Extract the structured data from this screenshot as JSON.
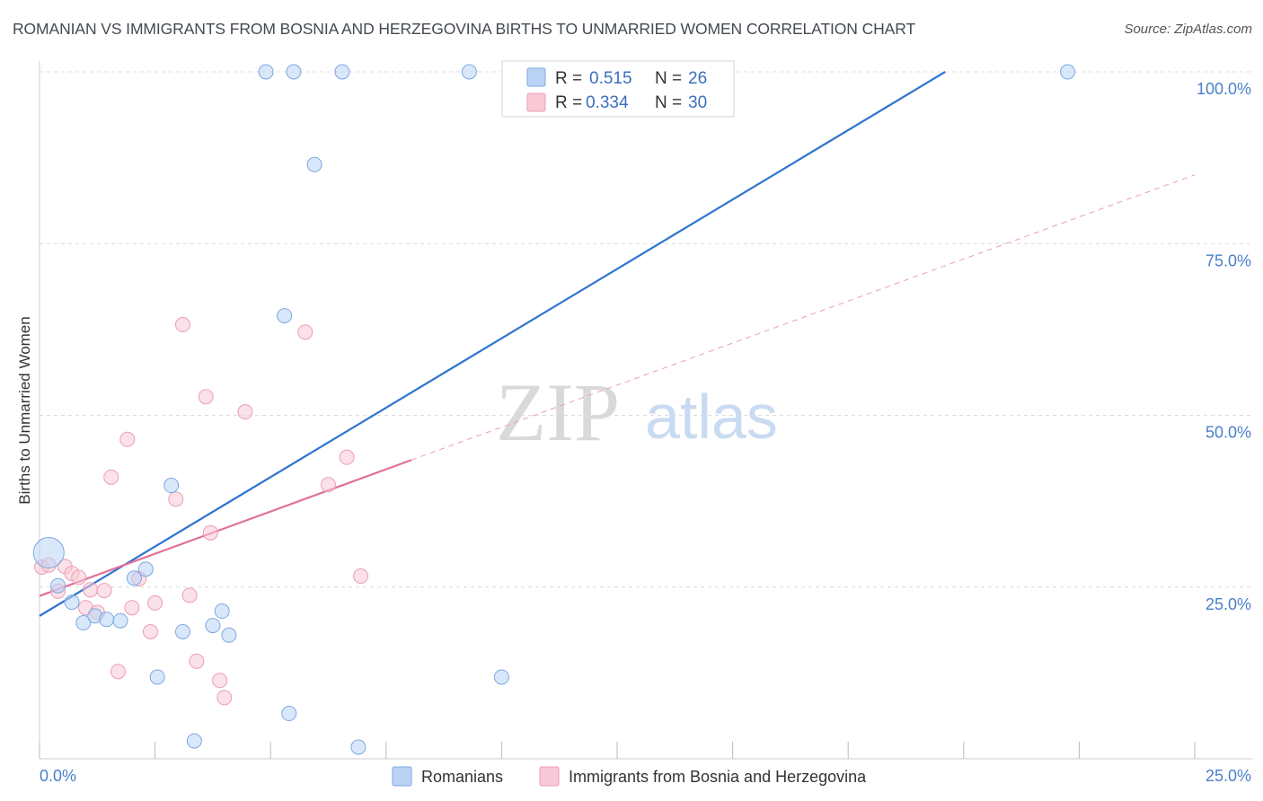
{
  "header": {
    "title": "ROMANIAN VS IMMIGRANTS FROM BOSNIA AND HERZEGOVINA BIRTHS TO UNMARRIED WOMEN CORRELATION CHART",
    "source": "Source: ZipAtlas.com"
  },
  "watermark": {
    "zip": "ZIP",
    "atlas": "atlas"
  },
  "legend_top": {
    "rows": [
      {
        "r_label": "R =",
        "r_value": "0.515",
        "n_label": "N =",
        "n_value": "26"
      },
      {
        "r_label": "R =",
        "r_value": "0.334",
        "n_label": "N =",
        "n_value": "30"
      }
    ]
  },
  "legend_bottom": {
    "romanians": "Romanians",
    "bosnia": "Immigrants from Bosnia and Herzegovina"
  },
  "colors": {
    "romanians_fill": "#b9d3f5",
    "romanians_stroke": "#7ea8e0",
    "romanians_line": "#2f73d0",
    "bosnia_fill": "#f8c8d6",
    "bosnia_stroke": "#ec9db4",
    "bosnia_line": "#e0709a",
    "grid": "#dcdcdc",
    "tick_label": "#4a7fc9"
  },
  "chart_data": {
    "type": "scatter",
    "title": "ROMANIAN VS IMMIGRANTS FROM BOSNIA AND HERZEGOVINA BIRTHS TO UNMARRIED WOMEN CORRELATION CHART",
    "xlabel": "",
    "ylabel": "Births to Unmarried Women",
    "xlim": [
      0,
      25
    ],
    "ylim": [
      0,
      100
    ],
    "x_tick_labels": [
      "0.0%",
      "25.0%"
    ],
    "y_tick_labels": [
      "25.0%",
      "50.0%",
      "75.0%",
      "100.0%"
    ],
    "y_ticks": [
      25,
      50,
      75,
      100
    ],
    "series": [
      {
        "name": "Romanians",
        "R": 0.515,
        "N": 26,
        "points": [
          {
            "x": 0.2,
            "y": 30.0,
            "big": true
          },
          {
            "x": 0.4,
            "y": 25.2
          },
          {
            "x": 0.7,
            "y": 22.8
          },
          {
            "x": 0.95,
            "y": 19.8
          },
          {
            "x": 1.2,
            "y": 20.8
          },
          {
            "x": 1.45,
            "y": 20.3
          },
          {
            "x": 1.75,
            "y": 20.1
          },
          {
            "x": 2.05,
            "y": 26.3
          },
          {
            "x": 2.3,
            "y": 27.6
          },
          {
            "x": 2.85,
            "y": 39.8
          },
          {
            "x": 3.1,
            "y": 18.5
          },
          {
            "x": 3.75,
            "y": 19.4
          },
          {
            "x": 3.95,
            "y": 21.5
          },
          {
            "x": 4.1,
            "y": 18.0
          },
          {
            "x": 2.55,
            "y": 11.9
          },
          {
            "x": 3.35,
            "y": 2.6
          },
          {
            "x": 5.4,
            "y": 6.6
          },
          {
            "x": 6.9,
            "y": 1.7
          },
          {
            "x": 10.0,
            "y": 11.9
          },
          {
            "x": 5.3,
            "y": 64.5
          },
          {
            "x": 5.95,
            "y": 86.5
          },
          {
            "x": 4.9,
            "y": 100.0
          },
          {
            "x": 5.5,
            "y": 100.0
          },
          {
            "x": 6.55,
            "y": 100.0
          },
          {
            "x": 9.3,
            "y": 100.0
          },
          {
            "x": 22.25,
            "y": 100.0
          }
        ],
        "trend": {
          "x0": 0,
          "y0": 20.8,
          "x1": 19.6,
          "y1": 100.0
        }
      },
      {
        "name": "Immigrants from Bosnia and Herzegovina",
        "R": 0.334,
        "N": 30,
        "points": [
          {
            "x": 0.05,
            "y": 27.9
          },
          {
            "x": 0.2,
            "y": 28.2
          },
          {
            "x": 0.4,
            "y": 24.4
          },
          {
            "x": 0.55,
            "y": 28.0
          },
          {
            "x": 0.7,
            "y": 27.0
          },
          {
            "x": 0.85,
            "y": 26.4
          },
          {
            "x": 1.0,
            "y": 22.0
          },
          {
            "x": 1.1,
            "y": 24.6
          },
          {
            "x": 1.25,
            "y": 21.3
          },
          {
            "x": 1.4,
            "y": 24.5
          },
          {
            "x": 1.55,
            "y": 41.0
          },
          {
            "x": 1.7,
            "y": 12.7
          },
          {
            "x": 1.9,
            "y": 46.5
          },
          {
            "x": 2.0,
            "y": 22.0
          },
          {
            "x": 2.15,
            "y": 26.2
          },
          {
            "x": 2.4,
            "y": 18.5
          },
          {
            "x": 2.5,
            "y": 22.7
          },
          {
            "x": 2.95,
            "y": 37.8
          },
          {
            "x": 3.1,
            "y": 63.2
          },
          {
            "x": 3.25,
            "y": 23.8
          },
          {
            "x": 3.4,
            "y": 14.2
          },
          {
            "x": 3.6,
            "y": 52.7
          },
          {
            "x": 3.7,
            "y": 32.9
          },
          {
            "x": 3.9,
            "y": 11.4
          },
          {
            "x": 4.0,
            "y": 8.9
          },
          {
            "x": 4.45,
            "y": 50.5
          },
          {
            "x": 5.75,
            "y": 62.1
          },
          {
            "x": 6.25,
            "y": 39.9
          },
          {
            "x": 6.65,
            "y": 43.9
          },
          {
            "x": 6.95,
            "y": 26.6
          }
        ],
        "trend_solid": {
          "x0": 0,
          "y0": 23.7,
          "x1": 8.05,
          "y1": 43.5
        },
        "trend_dashed": {
          "x0": 8.05,
          "y0": 43.5,
          "x1": 25.0,
          "y1": 85.0
        }
      }
    ]
  }
}
